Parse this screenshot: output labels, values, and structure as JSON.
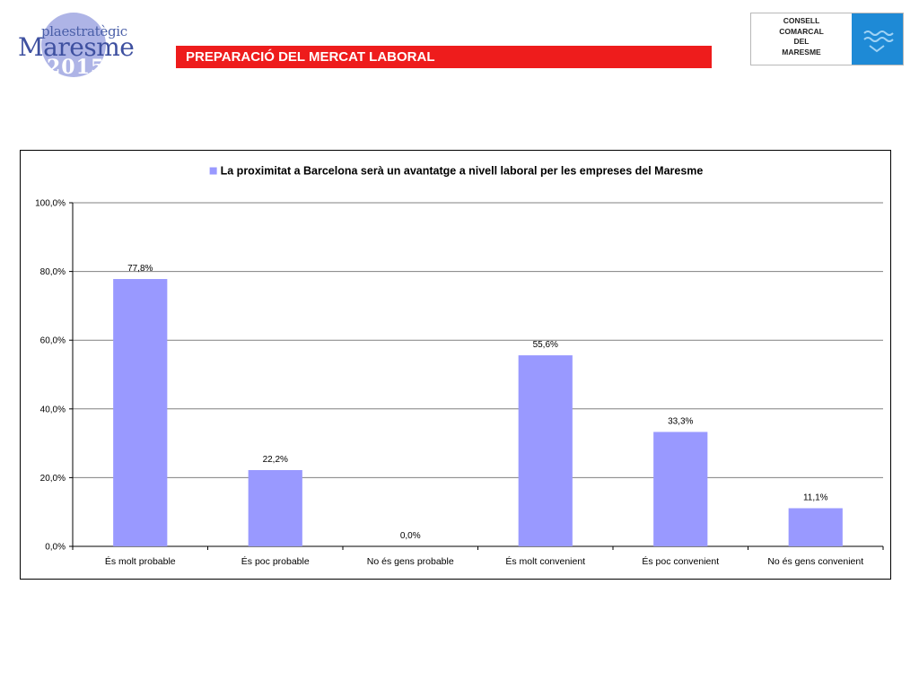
{
  "logo_left": {
    "line1": "plaestratègic",
    "line2": "Maresme",
    "line3": "2015"
  },
  "header": {
    "title": "PREPARACIÓ DEL MERCAT LABORAL"
  },
  "logo_right": {
    "lines": [
      "CONSELL",
      "COMARCAL",
      "DEL",
      "MARESME"
    ]
  },
  "colors": {
    "header_bar": "#ee1c1c",
    "bar": "#9999ff",
    "gridline": "#808080",
    "emblem": "#1e8ad6"
  },
  "chart_data": {
    "type": "bar",
    "categories": [
      "És molt probable",
      "És poc probable",
      "No és gens probable",
      "És molt convenient",
      "És poc convenient",
      "No és gens convenient"
    ],
    "series": [
      {
        "name": "La proximitat a Barcelona serà un avantatge a nivell laboral per les empreses del Maresme",
        "values": [
          77.8,
          22.2,
          0.0,
          55.6,
          33.3,
          11.1
        ]
      }
    ],
    "data_labels": [
      "77,8%",
      "22,2%",
      "0,0%",
      "55,6%",
      "33,3%",
      "11,1%"
    ],
    "ylim": [
      0,
      100
    ],
    "yticks": [
      0,
      20,
      40,
      60,
      80,
      100
    ],
    "ytick_labels": [
      "0,0%",
      "20,0%",
      "40,0%",
      "60,0%",
      "80,0%",
      "100,0%"
    ],
    "legend_position": "top",
    "grid": true
  }
}
